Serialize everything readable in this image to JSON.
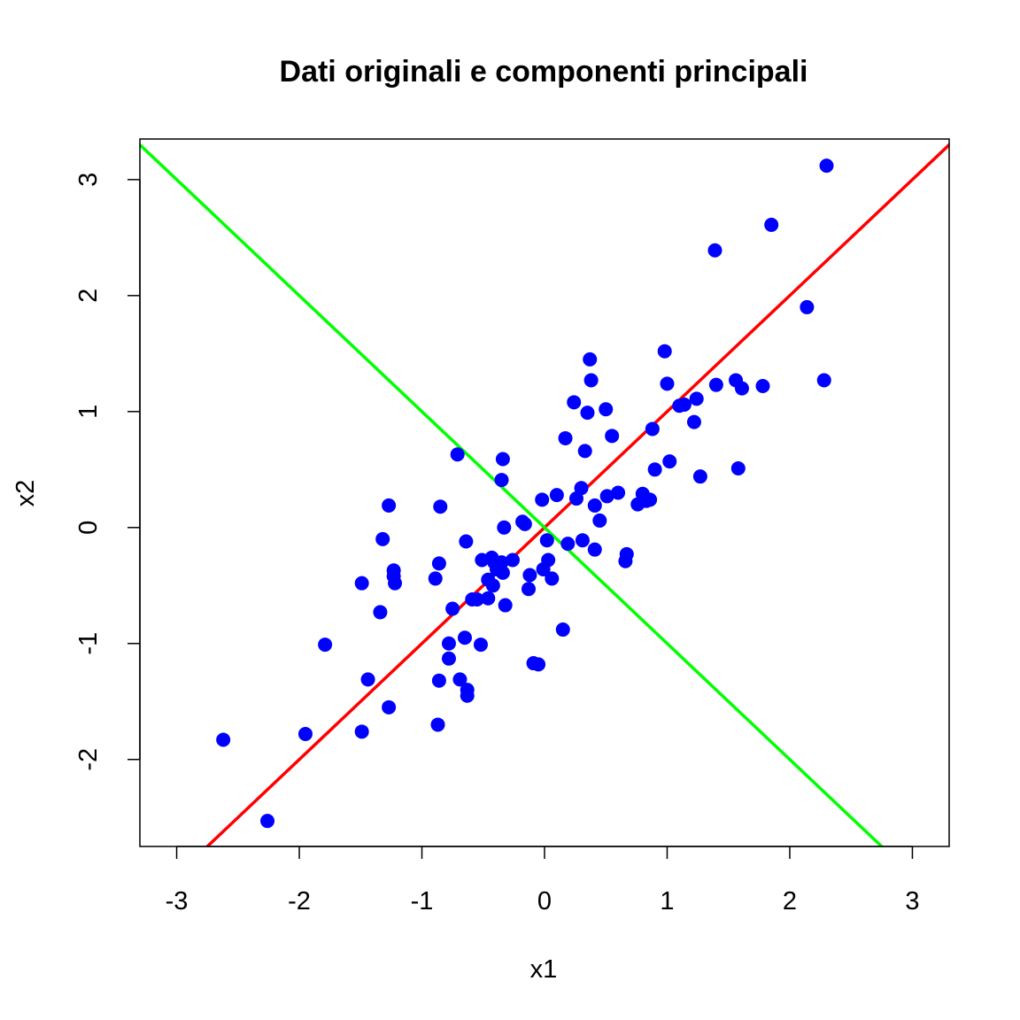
{
  "chart_data": {
    "type": "scatter",
    "title": "Dati originali e componenti principali",
    "xlabel": "x1",
    "ylabel": "x2",
    "xlim": [
      -3.3,
      3.3
    ],
    "ylim": [
      -2.75,
      3.35
    ],
    "xticks": [
      "-3",
      "-2",
      "-1",
      "0",
      "1",
      "2",
      "3"
    ],
    "yticks": [
      "-2",
      "-1",
      "0",
      "1",
      "2",
      "3"
    ],
    "grid": false,
    "point_color": "#0000ff",
    "points": [
      [
        -2.62,
        -1.83
      ],
      [
        -2.26,
        -2.53
      ],
      [
        -1.95,
        -1.78
      ],
      [
        -1.79,
        -1.01
      ],
      [
        -1.49,
        -1.76
      ],
      [
        -1.44,
        -1.31
      ],
      [
        -1.49,
        -0.48
      ],
      [
        -1.34,
        -0.73
      ],
      [
        -1.32,
        -0.1
      ],
      [
        -1.27,
        0.19
      ],
      [
        -1.27,
        -1.55
      ],
      [
        -1.23,
        -0.37
      ],
      [
        -1.23,
        -0.42
      ],
      [
        -1.22,
        -0.48
      ],
      [
        -0.89,
        -0.44
      ],
      [
        -0.86,
        -0.31
      ],
      [
        -0.85,
        0.18
      ],
      [
        -0.86,
        -1.32
      ],
      [
        -0.87,
        -1.7
      ],
      [
        -0.78,
        -1.0
      ],
      [
        -0.78,
        -1.13
      ],
      [
        -0.75,
        -0.7
      ],
      [
        -0.71,
        0.63
      ],
      [
        -0.69,
        -1.31
      ],
      [
        -0.65,
        -0.95
      ],
      [
        -0.63,
        -1.4
      ],
      [
        -0.63,
        -1.45
      ],
      [
        -0.64,
        -0.12
      ],
      [
        -0.59,
        -0.62
      ],
      [
        -0.55,
        -0.62
      ],
      [
        -0.52,
        -1.01
      ],
      [
        -0.51,
        -0.28
      ],
      [
        -0.46,
        -0.61
      ],
      [
        -0.46,
        -0.45
      ],
      [
        -0.43,
        -0.26
      ],
      [
        -0.41,
        -0.3
      ],
      [
        -0.39,
        -0.36
      ],
      [
        -0.35,
        -0.3
      ],
      [
        -0.34,
        -0.39
      ],
      [
        -0.42,
        -0.5
      ],
      [
        -0.33,
        0.0
      ],
      [
        -0.35,
        0.41
      ],
      [
        -0.34,
        0.59
      ],
      [
        -0.32,
        -0.67
      ],
      [
        -0.26,
        -0.28
      ],
      [
        -0.18,
        0.05
      ],
      [
        -0.16,
        0.03
      ],
      [
        -0.12,
        -0.41
      ],
      [
        -0.13,
        -0.53
      ],
      [
        -0.09,
        -1.17
      ],
      [
        -0.05,
        -1.18
      ],
      [
        -0.02,
        0.24
      ],
      [
        -0.01,
        -0.36
      ],
      [
        0.02,
        -0.11
      ],
      [
        0.03,
        -0.28
      ],
      [
        0.06,
        -0.44
      ],
      [
        0.1,
        0.28
      ],
      [
        0.15,
        -0.88
      ],
      [
        0.17,
        0.77
      ],
      [
        0.19,
        -0.14
      ],
      [
        0.24,
        1.08
      ],
      [
        0.26,
        0.25
      ],
      [
        0.3,
        0.34
      ],
      [
        0.31,
        -0.11
      ],
      [
        0.33,
        0.66
      ],
      [
        0.35,
        0.99
      ],
      [
        0.37,
        1.45
      ],
      [
        0.38,
        1.27
      ],
      [
        0.41,
        0.19
      ],
      [
        0.41,
        -0.19
      ],
      [
        0.45,
        0.06
      ],
      [
        0.5,
        1.02
      ],
      [
        0.51,
        0.27
      ],
      [
        0.55,
        0.79
      ],
      [
        0.6,
        0.3
      ],
      [
        0.66,
        -0.29
      ],
      [
        0.67,
        -0.23
      ],
      [
        0.76,
        0.2
      ],
      [
        0.8,
        0.29
      ],
      [
        0.83,
        0.23
      ],
      [
        0.86,
        0.24
      ],
      [
        0.88,
        0.85
      ],
      [
        0.9,
        0.5
      ],
      [
        0.98,
        1.52
      ],
      [
        1.0,
        1.24
      ],
      [
        1.02,
        0.57
      ],
      [
        1.1,
        1.05
      ],
      [
        1.14,
        1.06
      ],
      [
        1.22,
        0.91
      ],
      [
        1.24,
        1.11
      ],
      [
        1.27,
        0.44
      ],
      [
        1.39,
        2.39
      ],
      [
        1.4,
        1.23
      ],
      [
        1.56,
        1.27
      ],
      [
        1.58,
        0.51
      ],
      [
        1.61,
        1.2
      ],
      [
        1.78,
        1.22
      ],
      [
        1.85,
        2.61
      ],
      [
        2.14,
        1.9
      ],
      [
        2.28,
        1.27
      ],
      [
        2.3,
        3.12
      ]
    ],
    "lines": [
      {
        "name": "",
        "slope": 1,
        "intercept": 0,
        "color": "#ff0000"
      },
      {
        "name": "",
        "slope": -1,
        "intercept": 0,
        "color": "#00ff00"
      }
    ]
  }
}
